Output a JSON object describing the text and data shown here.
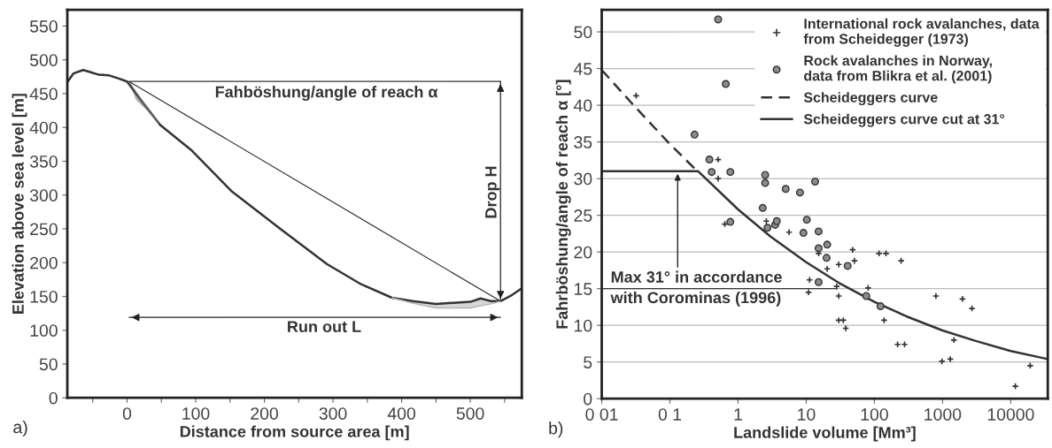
{
  "chart_data": [
    {
      "type": "line",
      "xlabel": "Distance from source area [m]",
      "ylabel": "Elevation above sea level [m]",
      "xlim": [
        -87,
        575
      ],
      "ylim": [
        0,
        574
      ],
      "xticks": [
        {
          "value": -50,
          "label": null
        },
        0,
        {
          "value": 50,
          "label": null
        },
        100,
        {
          "value": 150,
          "label": null
        },
        200,
        {
          "value": 250,
          "label": null
        },
        300,
        {
          "value": 350,
          "label": null
        },
        400,
        {
          "value": 450,
          "label": null
        },
        500,
        {
          "value": 550,
          "label": null
        }
      ],
      "yticks": [
        0,
        50,
        100,
        150,
        200,
        250,
        300,
        350,
        400,
        450,
        500,
        550
      ],
      "grid": false,
      "legend": false,
      "series": [
        {
          "color": "#707070",
          "x": [
            3,
            13,
            28,
            46
          ],
          "values": [
            467,
            452,
            430,
            406
          ],
          "upper": [
            467,
            452,
            430,
            406
          ],
          "lower": [
            467,
            441,
            426,
            406
          ]
        },
        {
          "color": "#b4b4b4",
          "x": [
            386,
            416,
            450,
            500,
            515,
            530,
            544
          ],
          "values": [
            148,
            140,
            133,
            133,
            136,
            139,
            143
          ],
          "upper": [
            148,
            143,
            139,
            142,
            147,
            143,
            143
          ],
          "lower": [
            148,
            140,
            133,
            133,
            136,
            139,
            143
          ]
        },
        {
          "color": "#333333",
          "line_style": "solid",
          "x": [
            -87,
            -78,
            -64,
            -54,
            -41,
            -26,
            -14,
            0,
            23,
            48,
            93,
            152,
            222,
            291,
            341,
            386,
            416,
            450,
            500,
            515,
            530,
            544,
            559,
            575
          ],
          "values": [
            467,
            480,
            485,
            482,
            478,
            477,
            473,
            468,
            437,
            404,
            367,
            306,
            251,
            198,
            168,
            148,
            143,
            139,
            142,
            147,
            143,
            143,
            151,
            162
          ]
        },
        {
          "color": "#333333",
          "line_style": "solid",
          "x": [
            3,
            544
          ],
          "values": [
            468,
            143
          ]
        },
        {
          "color": "#333333",
          "line_style": "solid",
          "x": [
            3,
            544
          ],
          "values": [
            468,
            468
          ]
        },
        {
          "color": "#222222",
          "line_style": "solid",
          "x": [
            544,
            544
          ],
          "values": [
            468,
            143
          ]
        },
        {
          "color": "#222222",
          "line_style": "solid",
          "x": [
            3,
            544
          ],
          "values": [
            119,
            119
          ]
        }
      ],
      "annotations": [
        "Fahböshung/angle of reach α",
        "Drop H",
        "Run out L",
        "a)"
      ]
    },
    {
      "type": "scatter",
      "xlabel": "Landslide volume [Mm³]",
      "ylabel": "Fahrböshung/angle of reach α [°]",
      "log": "x",
      "xlim": [
        0.01,
        35000
      ],
      "ylim": [
        0,
        53
      ],
      "xticks": [
        {
          "value": 0.01,
          "label": "0 01"
        },
        {
          "value": 0.1,
          "label": "0 1"
        },
        1,
        10,
        100,
        1000,
        10000
      ],
      "yticks": [
        0,
        5,
        10,
        15,
        20,
        25,
        30,
        35,
        40,
        45,
        50
      ],
      "grid": "y",
      "legend": "top right",
      "series": [
        {
          "name": "International rock avalanches, data\nfrom Scheidegger (1973)",
          "marker": "cross",
          "color": "#333333",
          "x": [
            0.032,
            0.51,
            0.51,
            0.64,
            2.6,
            5.6,
            15.2,
            20.3,
            30,
            48,
            51,
            11.2,
            10.8,
            28,
            30,
            30,
            35,
            38,
            81,
            117,
            148,
            139,
            247,
            219,
            277,
            800,
            980,
            1300,
            1470,
            1960,
            2700,
            11700,
            19300
          ],
          "values": [
            41.3,
            32.6,
            30.0,
            23.8,
            24.2,
            22.7,
            19.8,
            17.7,
            18.3,
            20.3,
            18.8,
            16.2,
            14.5,
            15.3,
            14.0,
            10.7,
            10.7,
            9.6,
            15.1,
            19.8,
            19.8,
            10.7,
            18.8,
            7.4,
            7.4,
            14.0,
            5.1,
            5.4,
            8.0,
            13.6,
            12.3,
            1.7,
            4.5
          ]
        },
        {
          "name": "Rock avalanches in Norway,\ndata from Blikra et al. (2001)",
          "marker": "circle",
          "color": "#8c8c8c",
          "x": [
            0.51,
            0.66,
            0.23,
            0.38,
            0.41,
            0.77,
            2.5,
            2.5,
            5.0,
            8.1,
            13.5,
            2.3,
            10.2,
            0.77,
            2.7,
            3.5,
            3.7,
            9.1,
            15.2,
            15.2,
            20.3,
            19.9,
            40.5,
            15.2,
            76,
            123
          ],
          "values": [
            51.7,
            42.9,
            36.0,
            32.6,
            30.9,
            30.9,
            30.5,
            29.4,
            28.6,
            28.1,
            29.6,
            26.0,
            24.4,
            24.1,
            23.3,
            23.7,
            24.2,
            22.6,
            22.8,
            20.5,
            21.0,
            19.2,
            18.1,
            15.9,
            14.0,
            12.6
          ]
        },
        {
          "name": "Scheideggers curve",
          "type": "line",
          "line_style": "dashed",
          "color": "#333333",
          "x": [
            0.01,
            0.03,
            0.1,
            0.26
          ],
          "values": [
            44.8,
            39.9,
            34.7,
            30.9
          ]
        },
        {
          "name": "Scheideggers curve cut at 31°",
          "type": "line",
          "line_style": "solid",
          "color": "#333333",
          "x": [
            0.01,
            0.26,
            1,
            3,
            10,
            30,
            100,
            300,
            1000,
            3000,
            10000,
            35000
          ],
          "values": [
            31,
            31,
            25.8,
            22.1,
            18.6,
            15.8,
            13.2,
            11.2,
            9.3,
            7.9,
            6.5,
            5.4
          ]
        },
        {
          "type": "line",
          "line_style": "solid",
          "color": "#333333",
          "x": [
            0.01,
            28
          ],
          "values": [
            15,
            15
          ]
        }
      ],
      "annotations": [
        {
          "text": "Max 31° in accordance\nwith Corominas (1996)",
          "x": 0.13,
          "y": 31
        },
        "b)"
      ]
    }
  ]
}
